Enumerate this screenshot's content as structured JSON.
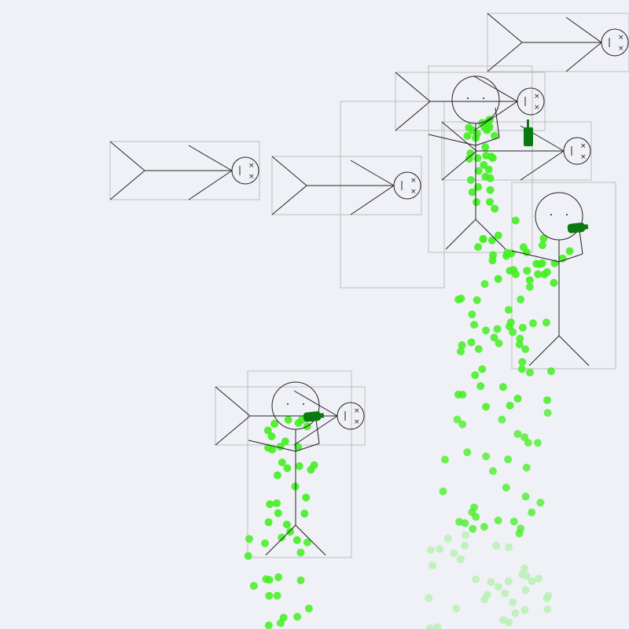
{
  "scene": {
    "background_color": "#f0f1f7",
    "line_color": "#222222",
    "box_color": "#bdbdbd",
    "bottle_color": "#0a7a10",
    "particle_color": "#44ee22",
    "particle_light_color": "#bdf0b8"
  },
  "stickmen": [
    {
      "pose": "standing",
      "state": "drinking",
      "icon": "stickman-icon"
    },
    {
      "pose": "standing",
      "state": "drinking",
      "icon": "stickman-icon"
    },
    {
      "pose": "standing",
      "state": "drinking",
      "icon": "stickman-icon"
    },
    {
      "pose": "lying",
      "state": "knocked-out",
      "icon": "stickman-fallen-icon"
    },
    {
      "pose": "lying",
      "state": "knocked-out",
      "icon": "stickman-fallen-icon"
    },
    {
      "pose": "lying",
      "state": "knocked-out",
      "icon": "stickman-fallen-icon"
    },
    {
      "pose": "lying",
      "state": "knocked-out",
      "icon": "stickman-fallen-icon"
    },
    {
      "pose": "lying",
      "state": "knocked-out",
      "icon": "stickman-fallen-icon"
    },
    {
      "pose": "lying",
      "state": "knocked-out",
      "icon": "stickman-fallen-icon"
    }
  ],
  "bottles": [
    {
      "state": "upright",
      "icon": "bottle-icon"
    },
    {
      "state": "tilted",
      "icon": "bottle-icon"
    },
    {
      "state": "tilted",
      "icon": "bottle-icon"
    }
  ]
}
